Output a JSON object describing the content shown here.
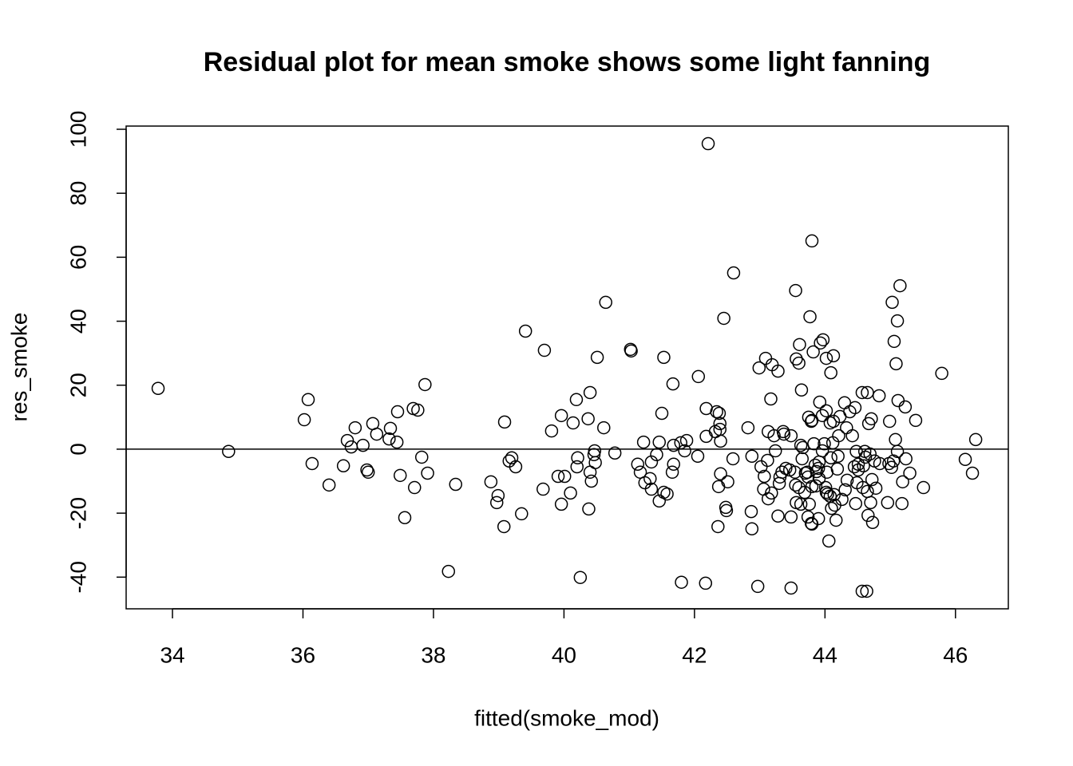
{
  "chart_data": {
    "type": "scatter",
    "title": "Residual plot for mean smoke shows some light fanning",
    "x_label": "fitted(smoke_mod)",
    "y_label": "res_smoke",
    "color": "#000000",
    "marker": "open-circle",
    "reference_line": 0,
    "xlim": [
      33.29,
      46.81
    ],
    "ylim": [
      -49.9,
      101.0
    ],
    "xticks": [
      34,
      36,
      38,
      40,
      42,
      44,
      46
    ],
    "yticks": [
      -40,
      -20,
      0,
      20,
      40,
      60,
      80,
      100
    ],
    "x": [
      33.78,
      34.86,
      36.02,
      36.08,
      36.14,
      36.4,
      36.62,
      36.68,
      36.74,
      36.8,
      36.92,
      36.98,
      37.0,
      37.07,
      37.13,
      37.32,
      37.34,
      37.44,
      37.45,
      37.49,
      37.56,
      37.69,
      37.71,
      37.76,
      37.82,
      37.87,
      37.91,
      38.23,
      38.34,
      38.88,
      38.97,
      38.99,
      39.08,
      39.09,
      39.16,
      39.2,
      39.26,
      39.35,
      39.41,
      39.68,
      39.7,
      39.81,
      39.91,
      39.96,
      39.96,
      40.01,
      40.1,
      40.14,
      40.19,
      40.2,
      40.21,
      40.25,
      40.37,
      40.38,
      40.4,
      40.4,
      40.42,
      40.46,
      40.47,
      40.48,
      40.51,
      40.61,
      40.64,
      40.78,
      41.02,
      41.03,
      41.13,
      41.17,
      41.22,
      41.24,
      41.32,
      41.34,
      41.34,
      41.42,
      41.46,
      41.46,
      41.5,
      41.53,
      41.53,
      41.58,
      41.67,
      41.68,
      41.66,
      41.68,
      41.8,
      41.79,
      41.88,
      41.85,
      42.05,
      42.06,
      42.17,
      42.18,
      42.18,
      42.21,
      42.32,
      42.34,
      42.36,
      42.37,
      42.38,
      42.39,
      42.39,
      42.4,
      42.4,
      42.45,
      42.48,
      42.49,
      42.51,
      42.59,
      42.6,
      42.82,
      42.87,
      42.88,
      42.88,
      42.97,
      42.99,
      43.02,
      43.06,
      43.07,
      43.09,
      43.12,
      43.13,
      43.13,
      43.17,
      43.18,
      43.19,
      43.22,
      43.24,
      43.28,
      43.28,
      43.3,
      43.31,
      43.34,
      43.36,
      43.37,
      43.4,
      43.46,
      43.48,
      43.48,
      43.48,
      43.54,
      43.55,
      43.56,
      43.55,
      43.56,
      43.6,
      43.6,
      43.61,
      43.63,
      43.63,
      43.64,
      43.65,
      43.66,
      43.69,
      43.7,
      43.73,
      43.74,
      43.74,
      43.75,
      43.76,
      43.77,
      43.79,
      43.79,
      43.8,
      43.8,
      43.8,
      43.8,
      43.82,
      43.83,
      43.85,
      43.86,
      43.87,
      43.9,
      43.9,
      43.91,
      43.91,
      43.92,
      43.93,
      43.96,
      43.96,
      43.97,
      43.99,
      44.01,
      44.02,
      44.02,
      44.02,
      44.03,
      44.04,
      44.06,
      44.08,
      44.08,
      44.09,
      44.09,
      44.1,
      44.12,
      44.13,
      44.13,
      44.14,
      44.15,
      44.17,
      44.19,
      44.2,
      44.21,
      44.23,
      44.26,
      44.3,
      44.31,
      44.33,
      44.34,
      44.38,
      44.42,
      44.45,
      44.46,
      44.47,
      44.48,
      44.49,
      44.51,
      44.51,
      44.57,
      44.57,
      44.58,
      44.59,
      44.61,
      44.62,
      44.64,
      44.65,
      44.65,
      44.66,
      44.67,
      44.69,
      44.7,
      44.71,
      44.72,
      44.73,
      44.76,
      44.78,
      44.83,
      44.84,
      44.96,
      44.98,
      44.99,
      45.02,
      45.03,
      45.05,
      45.06,
      45.08,
      45.09,
      45.11,
      45.11,
      45.12,
      45.15,
      45.18,
      45.19,
      45.23,
      45.24,
      45.3,
      45.39,
      45.51,
      45.79,
      46.15,
      46.26,
      46.31
    ],
    "values": [
      19.0,
      -0.7,
      9.2,
      15.5,
      -4.5,
      -11.2,
      -5.2,
      2.7,
      0.7,
      6.7,
      1.2,
      -6.5,
      -7.2,
      8.0,
      4.7,
      3.2,
      6.5,
      2.2,
      11.7,
      -8.2,
      -21.4,
      12.7,
      -12.0,
      12.2,
      -2.5,
      20.2,
      -7.5,
      -38.2,
      -11.0,
      -10.2,
      -16.7,
      -14.5,
      -24.2,
      8.5,
      -3.7,
      -2.7,
      -5.5,
      -20.2,
      36.9,
      -12.5,
      30.9,
      5.7,
      -8.5,
      -17.2,
      10.5,
      -8.5,
      -13.7,
      8.2,
      15.5,
      -5.5,
      -2.7,
      -40.1,
      9.5,
      -18.7,
      17.7,
      -7.2,
      -10.0,
      -1.7,
      -0.5,
      -4.2,
      28.7,
      6.7,
      45.9,
      -1.2,
      31.2,
      30.7,
      -4.7,
      -7.2,
      2.2,
      -10.5,
      -9.2,
      -4.0,
      -12.5,
      -1.7,
      2.2,
      -16.2,
      11.2,
      28.7,
      -13.5,
      -14.0,
      20.4,
      -4.7,
      -7.2,
      1.2,
      -41.6,
      2.0,
      2.7,
      -0.5,
      -2.2,
      22.7,
      -41.9,
      12.7,
      4.0,
      95.5,
      5.5,
      11.7,
      -24.2,
      -11.7,
      11.2,
      8.0,
      6.2,
      2.5,
      -7.7,
      40.9,
      -18.2,
      -19.2,
      -10.2,
      -3.0,
      55.1,
      6.7,
      -19.5,
      -2.2,
      -24.9,
      -42.9,
      25.4,
      -5.5,
      -12.5,
      -8.5,
      28.4,
      -3.5,
      5.5,
      -15.5,
      15.7,
      -13.7,
      26.4,
      4.2,
      -0.5,
      24.4,
      -20.9,
      -10.7,
      -8.7,
      -7.2,
      5.5,
      4.7,
      -6.0,
      -6.5,
      4.2,
      -43.4,
      -21.2,
      -7.2,
      -11.2,
      28.2,
      49.6,
      -16.7,
      26.9,
      -12.0,
      32.7,
      -17.2,
      1.2,
      18.5,
      -3.0,
      0.5,
      -13.5,
      -7.5,
      -7.2,
      -8.7,
      -21.2,
      10.0,
      -17.2,
      41.4,
      -23.2,
      8.7,
      9.0,
      -11.7,
      -23.4,
      65.1,
      30.4,
      1.7,
      -5.0,
      -11.5,
      -7.0,
      -6.0,
      -21.7,
      -9.2,
      -4.0,
      14.7,
      33.2,
      10.5,
      -0.5,
      34.2,
      1.7,
      -12.0,
      12.0,
      28.4,
      -13.5,
      -7.2,
      -14.0,
      -28.7,
      8.2,
      -14.7,
      23.9,
      -2.7,
      -18.5,
      2.0,
      29.2,
      8.7,
      -14.2,
      -17.5,
      -22.2,
      -6.2,
      -2.2,
      4.2,
      10.2,
      -15.7,
      14.5,
      -12.7,
      6.7,
      -9.7,
      11.7,
      4.2,
      -5.5,
      13.0,
      -17.0,
      -0.7,
      -10.5,
      -4.7,
      -6.5,
      17.7,
      -44.4,
      -12.0,
      -5.2,
      -0.7,
      -2.5,
      -44.4,
      17.7,
      -13.2,
      -20.7,
      8.0,
      -1.5,
      -16.7,
      9.5,
      -9.5,
      -22.9,
      -3.7,
      -12.2,
      16.7,
      -4.5,
      -16.7,
      -4.5,
      8.7,
      -5.7,
      45.9,
      -3.7,
      33.7,
      3.0,
      26.7,
      40.1,
      -0.7,
      15.2,
      51.1,
      -17.0,
      -10.2,
      13.2,
      -3.0,
      -7.5,
      9.0,
      -12.0,
      23.7,
      -3.2,
      -7.5,
      3.0
    ]
  }
}
